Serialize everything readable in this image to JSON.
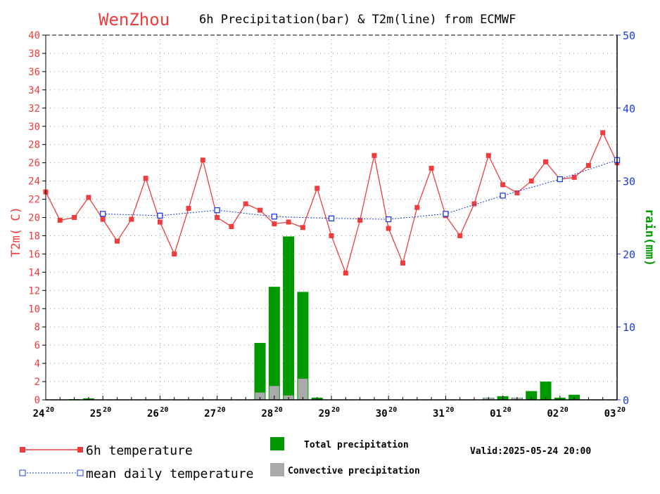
{
  "chart_data": {
    "type": "bar+line",
    "title_city": "WenZhou",
    "title": "6h Precipitation(bar) & T2m(line) from ECMWF",
    "ylabel_left": "T2m(  C)",
    "ylabel_right": "rain(mm)",
    "ylim_left": [
      0,
      40
    ],
    "ylim_right": [
      0,
      50
    ],
    "left_ticks": [
      0,
      2,
      4,
      6,
      8,
      10,
      12,
      14,
      16,
      18,
      20,
      22,
      24,
      26,
      28,
      30,
      32,
      34,
      36,
      38,
      40
    ],
    "right_ticks": [
      0,
      10,
      20,
      30,
      40,
      50
    ],
    "x_ticks": [
      {
        "day": "24",
        "hour": "20"
      },
      {
        "day": "25",
        "hour": "20"
      },
      {
        "day": "26",
        "hour": "20"
      },
      {
        "day": "27",
        "hour": "20"
      },
      {
        "day": "28",
        "hour": "20"
      },
      {
        "day": "29",
        "hour": "20"
      },
      {
        "day": "30",
        "hour": "20"
      },
      {
        "day": "31",
        "hour": "20"
      },
      {
        "day": "01",
        "hour": "20"
      },
      {
        "day": "02",
        "hour": "20"
      },
      {
        "day": "03",
        "hour": "20"
      }
    ],
    "grid": true,
    "temperature_6h": [
      22.8,
      19.7,
      20.0,
      22.2,
      19.8,
      17.4,
      19.8,
      24.3,
      19.5,
      16.0,
      21.0,
      26.3,
      20.0,
      19.0,
      21.5,
      20.8,
      19.3,
      19.5,
      18.9,
      23.2,
      18.0,
      13.9,
      19.7,
      26.8,
      18.8,
      15.0,
      21.1,
      25.4,
      20.2,
      18.0,
      21.5,
      26.8,
      23.6,
      22.7,
      24.0,
      26.1,
      24.2,
      24.4,
      25.7,
      29.3,
      26.0
    ],
    "mean_daily_temperature": [
      null,
      20.4,
      20.2,
      20.8,
      20.1,
      19.9,
      19.8,
      20.4,
      22.4,
      24.2,
      26.3
    ],
    "total_precipitation": [
      0,
      0,
      0.1,
      0.2,
      0,
      0,
      0,
      0,
      0,
      0,
      0,
      0,
      0,
      0,
      0,
      7.8,
      15.5,
      22.4,
      14.8,
      0.3,
      0,
      0,
      0,
      0,
      0,
      0,
      0,
      0,
      0,
      0,
      0,
      0.3,
      0.5,
      0.3,
      1.2,
      2.5,
      0.3,
      0.7,
      0,
      0,
      0
    ],
    "convective_precipitation": [
      0,
      0,
      0,
      0,
      0,
      0,
      0,
      0,
      0,
      0,
      0,
      0,
      0,
      0,
      0,
      1.0,
      1.9,
      0.6,
      2.9,
      0,
      0,
      0,
      0,
      0,
      0,
      0,
      0,
      0,
      0,
      0,
      0,
      0.3,
      0,
      0.3,
      0,
      0,
      0,
      0,
      0,
      0,
      0
    ],
    "legend": {
      "temp6h": "6h temperature",
      "mean": "mean daily temperature",
      "total": "Total precipitation",
      "conv": "Convective precipitation"
    },
    "valid": "Valid:2025-05-24 20:00",
    "colors": {
      "temp": "#f03c3c",
      "mean": "#1c3ce6",
      "total": "#009900",
      "conv": "#aaaaaa",
      "left_axis": "#f03c3c",
      "right_axis": "#1c3ce6",
      "rain_label": "#009900"
    }
  }
}
